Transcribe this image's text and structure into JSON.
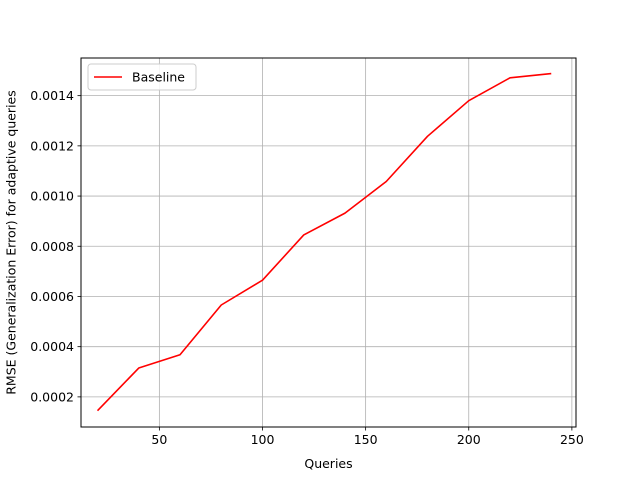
{
  "chart_data": {
    "type": "line",
    "title": "",
    "xlabel": "Queries",
    "ylabel": "RMSE (Generalization Error) for adaptive queries",
    "xlim": [
      12,
      252
    ],
    "ylim": [
      8e-05,
      0.00155
    ],
    "xticks": [
      50,
      100,
      150,
      200,
      250
    ],
    "xtick_labels": [
      "50",
      "100",
      "150",
      "200",
      "250"
    ],
    "yticks": [
      0.0002,
      0.0004,
      0.0006,
      0.0008,
      0.001,
      0.0012,
      0.0014
    ],
    "ytick_labels": [
      "0.0002",
      "0.0004",
      "0.0006",
      "0.0008",
      "0.0010",
      "0.0012",
      "0.0014"
    ],
    "grid": true,
    "legend_position": "top-left",
    "series": [
      {
        "name": "Baseline",
        "color": "#ff0000",
        "x": [
          20,
          40,
          60,
          80,
          100,
          120,
          140,
          160,
          180,
          200,
          220,
          240
        ],
        "y": [
          0.000145,
          0.000315,
          0.000368,
          0.000566,
          0.000665,
          0.000845,
          0.000932,
          0.001058,
          0.001238,
          0.00138,
          0.001471,
          0.001488
        ]
      }
    ]
  }
}
